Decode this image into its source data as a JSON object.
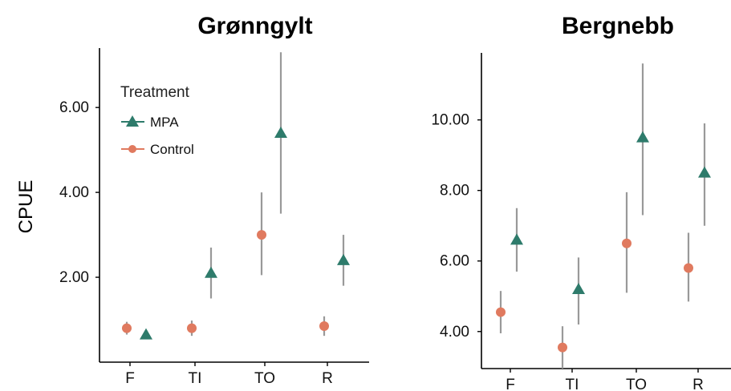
{
  "colors": {
    "mpa": "#2E7B6B",
    "control": "#E07A5F",
    "error_bar": "#999999"
  },
  "chart_data": [
    {
      "type": "scatter",
      "title": "Grønngylt",
      "ylabel": "CPUE",
      "xlabel": "",
      "categories": [
        "F",
        "TI",
        "TO",
        "R"
      ],
      "ylim": [
        0.0,
        7.4
      ],
      "yticks": [
        2.0,
        4.0,
        6.0
      ],
      "ytick_labels": [
        "2.00",
        "4.00",
        "6.00"
      ],
      "legend": {
        "title": "Treatment",
        "entries": [
          "MPA",
          "Control"
        ],
        "placement": "top-left"
      },
      "series": [
        {
          "name": "MPA",
          "marker": "triangle",
          "values": [
            0.65,
            2.1,
            5.4,
            2.4
          ],
          "lower": [
            0.6,
            1.5,
            3.5,
            1.8
          ],
          "upper": [
            0.7,
            2.7,
            7.3,
            3.0
          ]
        },
        {
          "name": "Control",
          "marker": "circle",
          "values": [
            0.8,
            0.8,
            3.0,
            0.85
          ],
          "lower": [
            0.65,
            0.62,
            2.05,
            0.62
          ],
          "upper": [
            0.95,
            0.98,
            4.0,
            1.08
          ]
        }
      ]
    },
    {
      "type": "scatter",
      "title": "Bergnebb",
      "ylabel": "",
      "xlabel": "",
      "categories": [
        "F",
        "TI",
        "TO",
        "R"
      ],
      "ylim": [
        2.95,
        11.9
      ],
      "yticks": [
        4.0,
        6.0,
        8.0,
        10.0
      ],
      "ytick_labels": [
        "4.00",
        "6.00",
        "8.00",
        "10.00"
      ],
      "series": [
        {
          "name": "MPA",
          "marker": "triangle",
          "values": [
            6.6,
            5.2,
            9.5,
            8.5
          ],
          "lower": [
            5.7,
            4.2,
            7.3,
            7.0
          ],
          "upper": [
            7.5,
            6.1,
            11.6,
            9.9
          ]
        },
        {
          "name": "Control",
          "marker": "circle",
          "values": [
            4.55,
            3.55,
            6.5,
            5.8
          ],
          "lower": [
            3.95,
            2.95,
            5.1,
            4.85
          ],
          "upper": [
            5.15,
            4.15,
            7.95,
            6.8
          ]
        }
      ]
    }
  ]
}
